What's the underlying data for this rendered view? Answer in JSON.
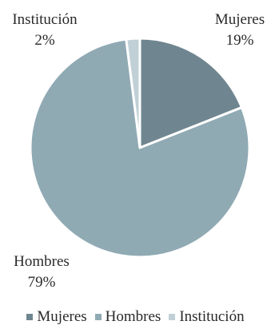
{
  "chart_data": {
    "type": "pie",
    "categories": [
      "Mujeres",
      "Hombres",
      "Institución"
    ],
    "values": [
      19,
      79,
      2
    ],
    "value_labels": [
      "19%",
      "79%",
      "2%"
    ],
    "colors": [
      "#6f8690",
      "#90aab4",
      "#c0d0d6"
    ],
    "start": "12 o'clock, clockwise",
    "legend_position": "bottom"
  }
}
